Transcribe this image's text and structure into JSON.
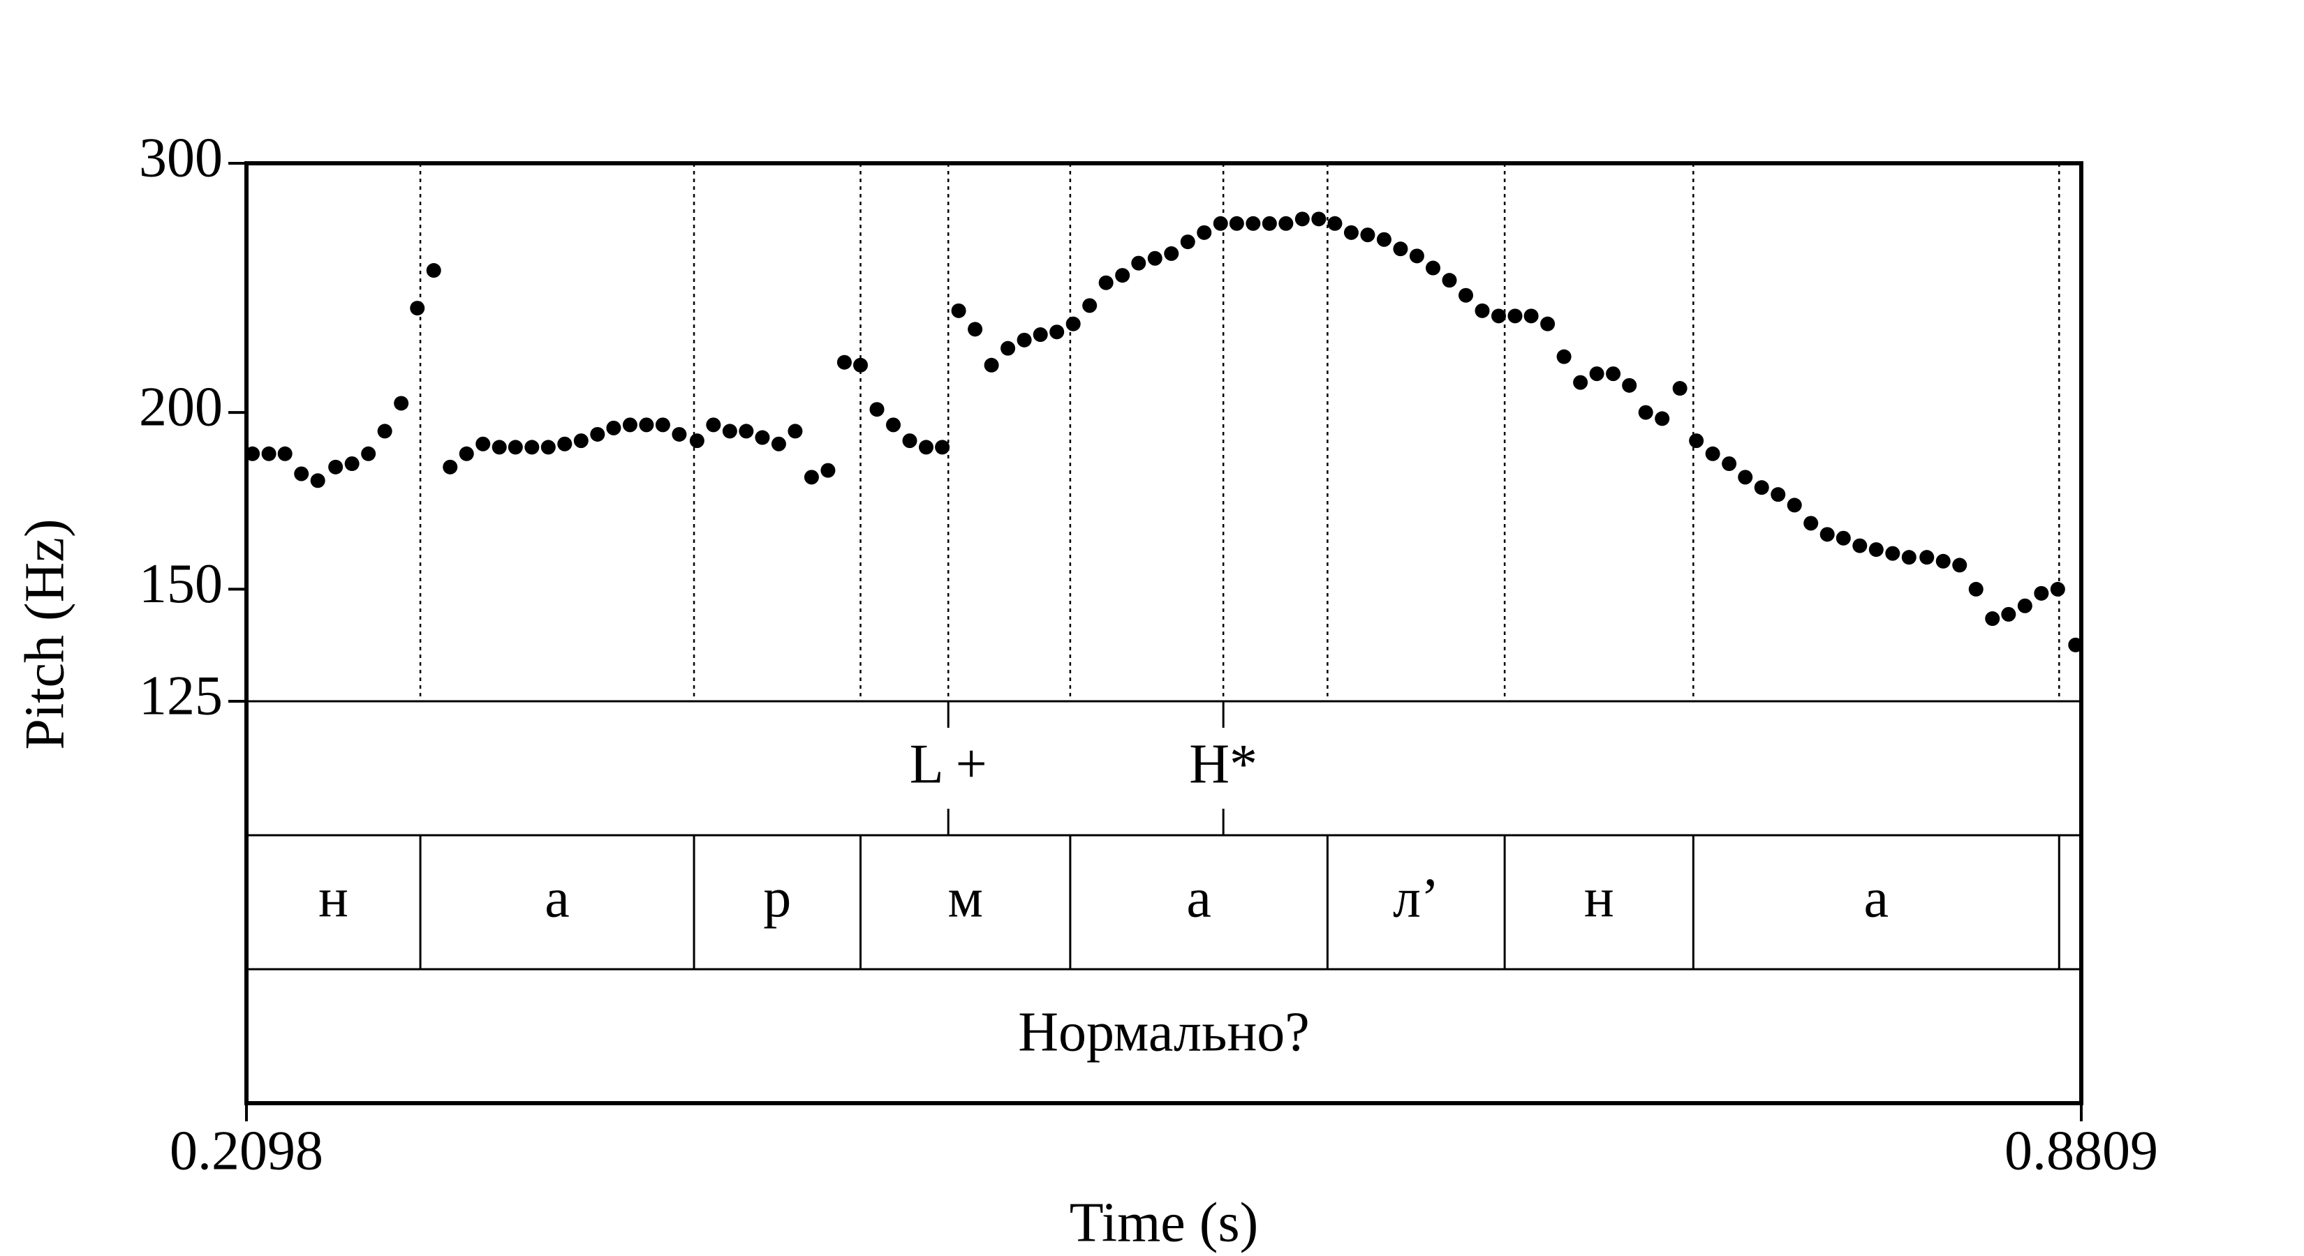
{
  "chart_data": {
    "type": "scatter",
    "x_label": "Time (s)",
    "y_label": "Pitch (Hz)",
    "xlim": [
      0.2098,
      0.8809
    ],
    "xticks": [
      0.2098,
      0.8809
    ],
    "ylim": [
      125,
      300
    ],
    "yticks": [
      125,
      150,
      200,
      300
    ],
    "yscale": "log",
    "color": "#000000",
    "x": [
      0.212,
      0.218,
      0.2239,
      0.2299,
      0.2359,
      0.2424,
      0.2484,
      0.2544,
      0.2604,
      0.2664,
      0.2723,
      0.2783,
      0.2843,
      0.2903,
      0.2963,
      0.3023,
      0.3082,
      0.3142,
      0.3202,
      0.3262,
      0.3322,
      0.3382,
      0.3441,
      0.3501,
      0.3561,
      0.3621,
      0.3681,
      0.3746,
      0.3806,
      0.3866,
      0.3926,
      0.3985,
      0.4045,
      0.4105,
      0.4165,
      0.4225,
      0.4285,
      0.4344,
      0.4404,
      0.4464,
      0.4524,
      0.4584,
      0.4643,
      0.4703,
      0.4763,
      0.4823,
      0.4883,
      0.4943,
      0.5002,
      0.5062,
      0.5122,
      0.5182,
      0.5242,
      0.5302,
      0.5361,
      0.5421,
      0.5481,
      0.5541,
      0.5601,
      0.5661,
      0.572,
      0.578,
      0.584,
      0.59,
      0.596,
      0.602,
      0.6079,
      0.6139,
      0.6199,
      0.6259,
      0.6319,
      0.6379,
      0.6438,
      0.6498,
      0.6558,
      0.6618,
      0.6678,
      0.6738,
      0.6797,
      0.6857,
      0.6917,
      0.6977,
      0.7037,
      0.7097,
      0.7156,
      0.7216,
      0.7276,
      0.7341,
      0.7401,
      0.7461,
      0.7521,
      0.758,
      0.764,
      0.77,
      0.776,
      0.782,
      0.788,
      0.7939,
      0.7999,
      0.8059,
      0.8119,
      0.8179,
      0.8244,
      0.8304,
      0.8364,
      0.8424,
      0.8484,
      0.8543,
      0.8603,
      0.8663,
      0.8723,
      0.8788
    ],
    "values": [
      187,
      187,
      187,
      181,
      179,
      183,
      184,
      187,
      194,
      203,
      237,
      252,
      183,
      187,
      190,
      189,
      189,
      189,
      189,
      190,
      191,
      193,
      195,
      196,
      196,
      196,
      193,
      191,
      196,
      194,
      194,
      192,
      190,
      194,
      180,
      182,
      217,
      216,
      201,
      196,
      191,
      189,
      189,
      236,
      229,
      216,
      222,
      225,
      227,
      228,
      231,
      238,
      247,
      250,
      255,
      257,
      259,
      264,
      268,
      272,
      272,
      272,
      272,
      272,
      274,
      274,
      272,
      268,
      267,
      265,
      261,
      258,
      253,
      248,
      242,
      236,
      234,
      234,
      234,
      231,
      219,
      210,
      213,
      213,
      209,
      200,
      198,
      208,
      191,
      187,
      184,
      180,
      177,
      175,
      172,
      167,
      164,
      163,
      161,
      160,
      159,
      158,
      158,
      157,
      156,
      150,
      143,
      144,
      146,
      149,
      150,
      137
    ],
    "tiers": [
      {
        "type": "point",
        "points": [
          0.4665,
          0.5671
        ],
        "labels": [
          "L +",
          "H*"
        ]
      },
      {
        "type": "interval",
        "boundaries": [
          0.2734,
          0.3735,
          0.4344,
          0.5111,
          0.6052,
          0.67,
          0.739,
          0.8728
        ],
        "labels": [
          "н",
          "а",
          "р",
          "м",
          "а",
          "л’",
          "н",
          "а"
        ]
      },
      {
        "type": "interval",
        "boundaries": [],
        "labels": [
          "Нормально?"
        ]
      }
    ]
  }
}
